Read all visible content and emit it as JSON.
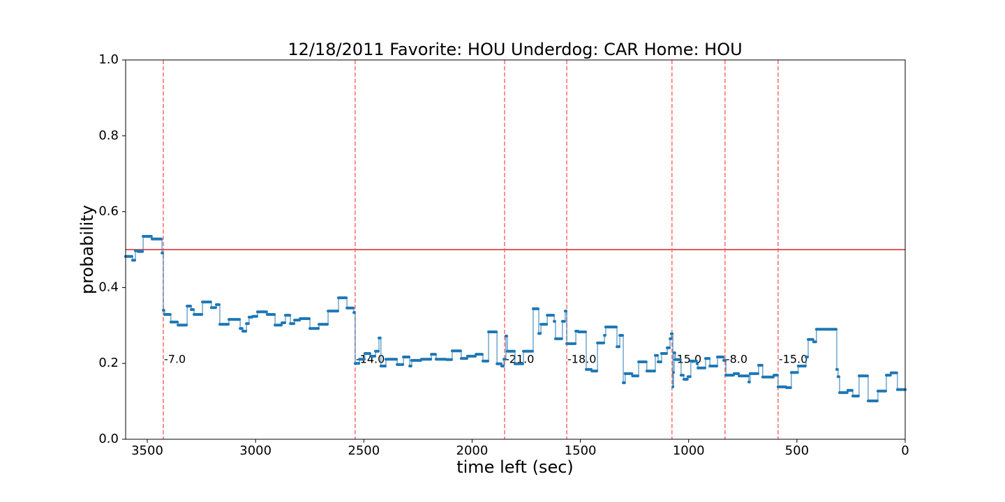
{
  "chart_data": {
    "type": "line",
    "drawstyle": "steps-post",
    "title": "12/18/2011 Favorite: HOU Underdog: CAR Home: HOU",
    "xlabel": "time left (sec)",
    "ylabel": "probability",
    "xlim": [
      3600,
      0
    ],
    "xticks": [
      3500,
      3000,
      2500,
      2000,
      1500,
      1000,
      500,
      0
    ],
    "ylim": [
      0,
      1
    ],
    "yticks": [
      {
        "value": 0,
        "label": "0.0"
      },
      0.2,
      0.4,
      0.6,
      0.8,
      {
        "value": 1,
        "label": "1.0"
      }
    ],
    "x": [
      3600,
      3568,
      3555,
      3542,
      3519,
      3478,
      3432,
      3426,
      3420,
      3391,
      3358,
      3316,
      3297,
      3284,
      3245,
      3204,
      3181,
      3165,
      3123,
      3071,
      3059,
      3042,
      3030,
      3013,
      2991,
      2946,
      2910,
      2878,
      2862,
      2839,
      2820,
      2794,
      2749,
      2707,
      2665,
      2617,
      2578,
      2546,
      2540,
      2520,
      2495,
      2469,
      2446,
      2430,
      2421,
      2398,
      2346,
      2317,
      2288,
      2279,
      2234,
      2188,
      2166,
      2118,
      2092,
      2050,
      2021,
      1982,
      1950,
      1924,
      1885,
      1863,
      1853,
      1844,
      1837,
      1802,
      1763,
      1718,
      1692,
      1682,
      1653,
      1621,
      1615,
      1583,
      1570,
      1563,
      1521,
      1508,
      1473,
      1447,
      1421,
      1389,
      1383,
      1331,
      1318,
      1302,
      1293,
      1259,
      1231,
      1193,
      1154,
      1141,
      1125,
      1099,
      1086,
      1080,
      1073,
      1070,
      1067,
      1061,
      1035,
      1022,
      1003,
      990,
      961,
      957,
      922,
      902,
      867,
      838,
      828,
      790,
      767,
      722,
      716,
      677,
      658,
      606,
      587,
      548,
      526,
      494,
      458,
      448,
      423,
      410,
      319,
      316,
      310,
      303,
      265,
      242,
      213,
      171,
      126,
      87,
      65,
      36,
      0
    ],
    "series": [
      {
        "color": "#1f77b4",
        "values": [
          0.482,
          0.472,
          0.497,
          0.495,
          0.535,
          0.528,
          0.491,
          0.34,
          0.329,
          0.309,
          0.301,
          0.351,
          0.342,
          0.329,
          0.362,
          0.347,
          0.355,
          0.303,
          0.316,
          0.292,
          0.285,
          0.305,
          0.322,
          0.324,
          0.336,
          0.329,
          0.301,
          0.307,
          0.327,
          0.305,
          0.314,
          0.318,
          0.292,
          0.303,
          0.338,
          0.373,
          0.346,
          0.334,
          0.2,
          0.211,
          0.226,
          0.219,
          0.232,
          0.267,
          0.193,
          0.211,
          0.197,
          0.217,
          0.193,
          0.208,
          0.211,
          0.224,
          0.211,
          0.21,
          0.233,
          0.213,
          0.219,
          0.224,
          0.206,
          0.283,
          0.199,
          0.193,
          0.211,
          0.272,
          0.232,
          0.199,
          0.232,
          0.344,
          0.279,
          0.303,
          0.327,
          0.311,
          0.265,
          0.311,
          0.338,
          0.252,
          0.285,
          0.283,
          0.184,
          0.18,
          0.254,
          0.274,
          0.296,
          0.244,
          0.274,
          0.149,
          0.173,
          0.167,
          0.204,
          0.18,
          0.221,
          0.204,
          0.226,
          0.241,
          0.265,
          0.278,
          0.138,
          0.176,
          0.228,
          0.21,
          0.169,
          0.158,
          0.165,
          0.206,
          0.199,
          0.188,
          0.213,
          0.193,
          0.217,
          0.208,
          0.169,
          0.173,
          0.167,
          0.151,
          0.173,
          0.195,
          0.164,
          0.169,
          0.138,
          0.136,
          0.176,
          0.193,
          0.217,
          0.263,
          0.257,
          0.29,
          0.29,
          0.184,
          0.165,
          0.123,
          0.129,
          0.114,
          0.167,
          0.101,
          0.127,
          0.169,
          0.175,
          0.131,
          0.131
        ]
      }
    ],
    "hline": {
      "value": 0.5,
      "color": "#d62728"
    },
    "vlines": {
      "color": "#ff5555",
      "x": [
        3426,
        2540,
        1850,
        1563,
        1077,
        832,
        587
      ],
      "labels": [
        "-7.0",
        "-14.0",
        "-21.0",
        "-18.0",
        "-15.0",
        "-8.0",
        "-15.0"
      ]
    }
  }
}
